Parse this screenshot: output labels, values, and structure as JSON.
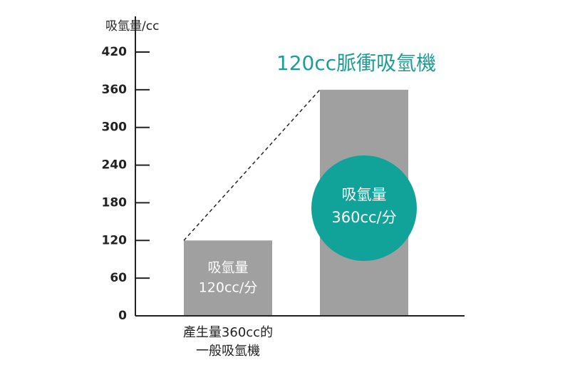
{
  "chart_data": {
    "type": "bar",
    "title": "120cc脈衝吸氫機",
    "y_label": "吸氫量/cc",
    "categories": [
      "產生量360cc的一般吸氫機",
      null
    ],
    "values": [
      120,
      360
    ],
    "value_labels": [
      "120cc/分",
      "360cc/分"
    ],
    "value_label_heading": "吸氫量",
    "color": "#a0a0a0",
    "highlight_color": "#11a39a",
    "ylim": [
      0,
      420
    ],
    "yticks": [
      0,
      60,
      120,
      180,
      240,
      300,
      360,
      420
    ]
  }
}
